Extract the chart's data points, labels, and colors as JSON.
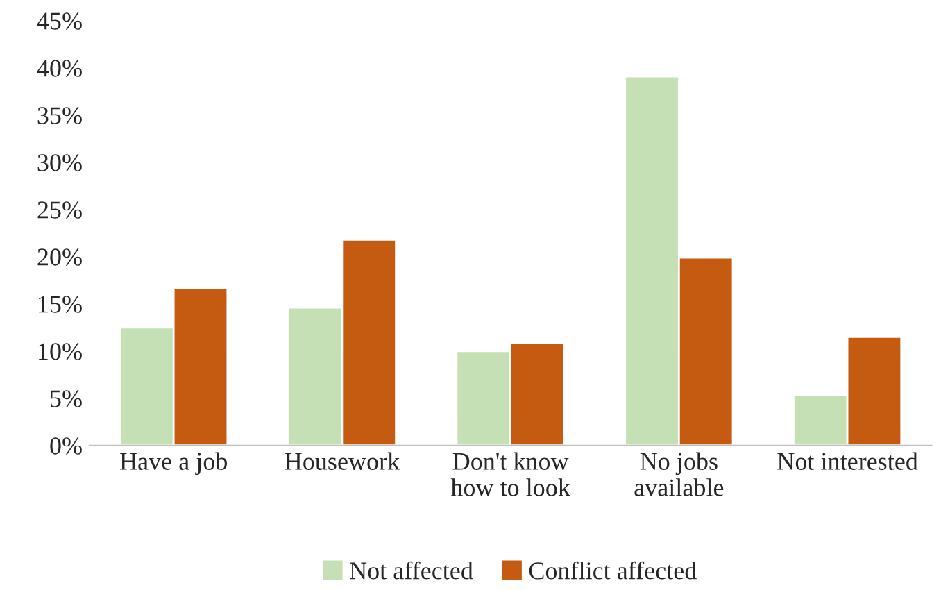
{
  "chart_data": {
    "type": "bar",
    "categories": [
      "Have a job",
      "Housework",
      "Don't know\nhow to look",
      "No jobs\navailable",
      "Not interested"
    ],
    "series": [
      {
        "name": "Not affected",
        "color": "#c5e0b4",
        "values": [
          12.5,
          14.6,
          10.0,
          39.1,
          5.3
        ]
      },
      {
        "name": "Conflict affected",
        "color": "#c55a11",
        "values": [
          16.7,
          21.8,
          10.9,
          19.9,
          11.5
        ]
      }
    ],
    "ylim": [
      0,
      45
    ],
    "yticks": [
      {
        "value": 0,
        "label": "0%"
      },
      {
        "value": 5,
        "label": "5%"
      },
      {
        "value": 10,
        "label": "10%"
      },
      {
        "value": 15,
        "label": "15%"
      },
      {
        "value": 20,
        "label": "20%"
      },
      {
        "value": 25,
        "label": "25%"
      },
      {
        "value": 30,
        "label": "30%"
      },
      {
        "value": 35,
        "label": "35%"
      },
      {
        "value": 40,
        "label": "40%"
      },
      {
        "value": 45,
        "label": "45%"
      }
    ],
    "grid": false,
    "legend": "bottom"
  }
}
